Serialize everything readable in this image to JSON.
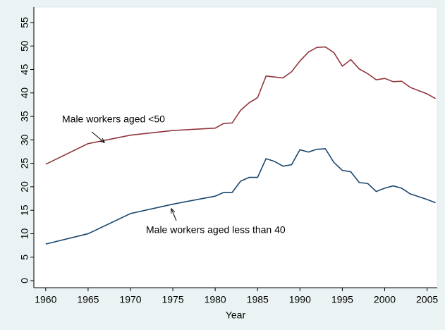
{
  "chart_data": {
    "type": "line",
    "x_label": "Year",
    "x": [
      1960,
      1965,
      1970,
      1975,
      1980,
      1981,
      1982,
      1983,
      1984,
      1985,
      1986,
      1987,
      1988,
      1989,
      1990,
      1991,
      1992,
      1993,
      1994,
      1995,
      1996,
      1997,
      1998,
      1999,
      2000,
      2001,
      2002,
      2003,
      2004,
      2005,
      2006
    ],
    "series": [
      {
        "color": "#90353b",
        "values": [
          24.8,
          29.2,
          31,
          32,
          32.5,
          33.5,
          33.6,
          36.3,
          37.9,
          39,
          43.6,
          43.4,
          43.2,
          44.5,
          46.8,
          48.7,
          49.7,
          49.8,
          48.6,
          45.7,
          47.1,
          45.1,
          44.1,
          42.8,
          43.1,
          42.4,
          42.5,
          41.2,
          40.5,
          39.8,
          38.8
        ]
      },
      {
        "color": "#1a476f",
        "values": [
          7.8,
          10,
          14.3,
          16.3,
          18,
          18.8,
          18.8,
          21.2,
          22,
          22,
          26,
          25.4,
          24.4,
          24.7,
          27.9,
          27.4,
          28,
          28.1,
          25.2,
          23.5,
          23.2,
          20.9,
          20.7,
          19,
          19.7,
          20.2,
          19.7,
          18.5,
          17.9,
          17.3,
          16.6
        ]
      }
    ],
    "annotations": [
      "Male workers aged <50",
      "Male workers aged less than 40"
    ],
    "xlim": [
      1958.6,
      2006.2
    ],
    "xticks": [
      1960,
      1965,
      1970,
      1975,
      1980,
      1985,
      1990,
      1995,
      2000,
      2005
    ],
    "ylim": [
      -1.5,
      58.3
    ],
    "yticks": [
      0,
      5,
      10,
      15,
      20,
      25,
      30,
      35,
      40,
      45,
      50,
      55
    ],
    "grid": false
  }
}
